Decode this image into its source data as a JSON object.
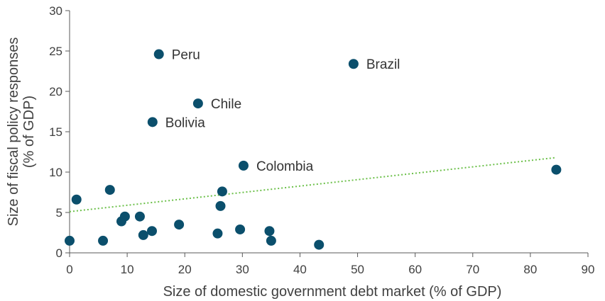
{
  "chart_data": {
    "type": "scatter",
    "xlabel": "Size of domestic government debt market (% of GDP)",
    "ylabel": "Size of fiscal policy responses\n(% of GDP)",
    "xlim": [
      0,
      90
    ],
    "ylim": [
      0,
      30
    ],
    "x_ticks": [
      0,
      10,
      20,
      30,
      40,
      50,
      60,
      70,
      80,
      90
    ],
    "y_ticks": [
      0,
      5,
      10,
      15,
      20,
      25,
      30
    ],
    "grid": false,
    "legend": "none",
    "marker_color": "#0b4f6c",
    "trendline": {
      "color": "#6cc04a",
      "style": "dotted",
      "x": [
        0,
        84.5
      ],
      "y": [
        5.1,
        11.8
      ]
    },
    "points": [
      {
        "x": 15.5,
        "y": 24.6,
        "label": "Peru"
      },
      {
        "x": 49.3,
        "y": 23.4,
        "label": "Brazil"
      },
      {
        "x": 22.3,
        "y": 18.5,
        "label": "Chile"
      },
      {
        "x": 14.4,
        "y": 16.2,
        "label": "Bolivia"
      },
      {
        "x": 30.2,
        "y": 10.8,
        "label": "Colombia"
      },
      {
        "x": 84.5,
        "y": 10.3,
        "label": ""
      },
      {
        "x": 0.0,
        "y": 1.5,
        "label": ""
      },
      {
        "x": 1.2,
        "y": 6.6,
        "label": ""
      },
      {
        "x": 5.8,
        "y": 1.5,
        "label": ""
      },
      {
        "x": 7.0,
        "y": 7.8,
        "label": ""
      },
      {
        "x": 9.0,
        "y": 3.9,
        "label": ""
      },
      {
        "x": 9.6,
        "y": 4.5,
        "label": ""
      },
      {
        "x": 12.2,
        "y": 4.5,
        "label": ""
      },
      {
        "x": 12.8,
        "y": 2.2,
        "label": ""
      },
      {
        "x": 14.3,
        "y": 2.7,
        "label": ""
      },
      {
        "x": 19.0,
        "y": 3.5,
        "label": ""
      },
      {
        "x": 25.7,
        "y": 2.4,
        "label": ""
      },
      {
        "x": 26.2,
        "y": 5.8,
        "label": ""
      },
      {
        "x": 26.5,
        "y": 7.6,
        "label": ""
      },
      {
        "x": 29.6,
        "y": 2.9,
        "label": ""
      },
      {
        "x": 34.7,
        "y": 2.7,
        "label": ""
      },
      {
        "x": 35.0,
        "y": 1.5,
        "label": ""
      },
      {
        "x": 43.3,
        "y": 1.0,
        "label": ""
      }
    ]
  }
}
